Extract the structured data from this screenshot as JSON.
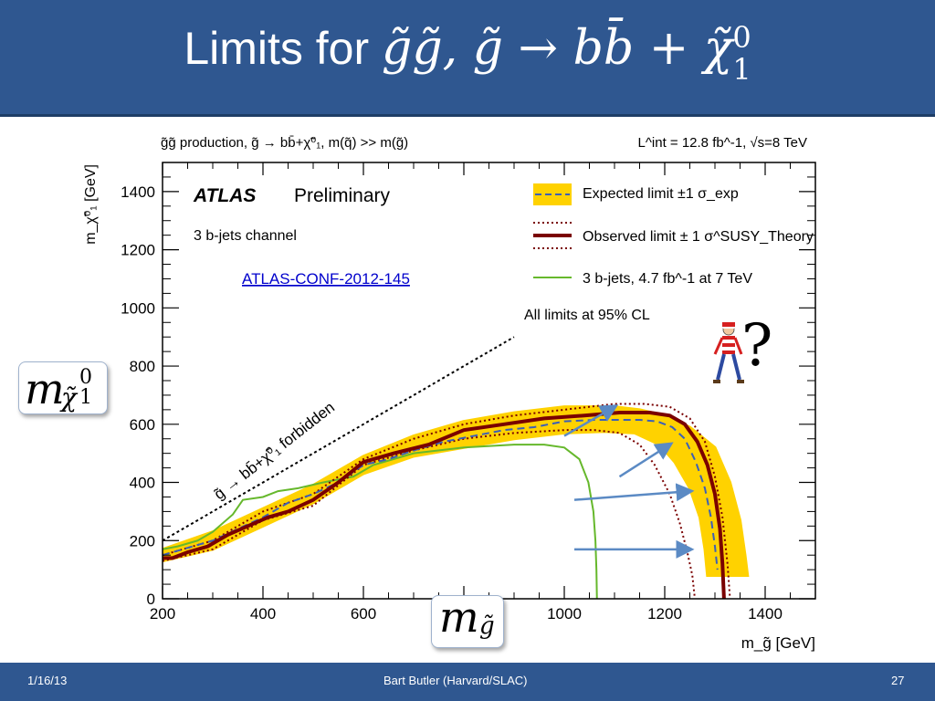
{
  "slide": {
    "title_text": "Limits for",
    "title_math": "g̃g̃, g̃ → bb̄ + χ̃",
    "title_math_sup": "0",
    "title_math_sub": "1",
    "footer_date": "1/16/13",
    "footer_author": "Bart Butler (Harvard/SLAC)",
    "footer_page": "27",
    "y_callout_main": "m",
    "y_callout_sub": "χ̃",
    "y_callout_sub_sup": "0",
    "y_callout_sub_sub": "1",
    "x_callout_main": "m",
    "x_callout_sub": "g̃",
    "question_mark": "?"
  },
  "chart_data": {
    "type": "line",
    "header_left": "g̃g̃  production, g̃ → bb̄+χ̃⁰₁, m(q̃) >> m(g̃)",
    "header_right": "L^int = 12.8 fb^-1, √s=8 TeV",
    "xlabel": "m_g̃ [GeV]",
    "ylabel": "m_χ̃⁰₁ [GeV]",
    "xlim": [
      200,
      1500
    ],
    "ylim": [
      0,
      1500
    ],
    "xticks": [
      200,
      400,
      600,
      800,
      1000,
      1200,
      1400
    ],
    "yticks": [
      0,
      200,
      400,
      600,
      800,
      1000,
      1200,
      1400
    ],
    "atlas": "ATLAS",
    "preliminary": "Preliminary",
    "channel": "3 b-jets channel",
    "conf_link": "ATLAS-CONF-2012-145",
    "cl_note": "All limits at 95% CL",
    "forbidden_label": "g̃ → bb̄+χ̃⁰₁  forbidden",
    "legend": [
      {
        "key": "expected",
        "text": "Expected limit ±1 σ_exp"
      },
      {
        "key": "observed",
        "text": "Observed limit ± 1 σ^SUSY_Theory"
      },
      {
        "key": "old",
        "text": "3 b-jets, 4.7 fb^-1 at 7 TeV"
      }
    ],
    "colors": {
      "observed": "#7a0000",
      "expected": "#3b5fb8",
      "band": "#ffd200",
      "old": "#66b82c",
      "arrow": "#5b8ac4",
      "forbidden": "#000000"
    },
    "series": {
      "forbidden": {
        "x": [
          200,
          900
        ],
        "y": [
          200,
          900
        ]
      },
      "observed": {
        "x": [
          200,
          220,
          250,
          290,
          330,
          370,
          410,
          450,
          500,
          550,
          600,
          660,
          730,
          800,
          880,
          960,
          1040,
          1110,
          1170,
          1210,
          1240,
          1265,
          1285,
          1300,
          1310,
          1315,
          1318
        ],
        "y": [
          140,
          140,
          160,
          180,
          220,
          250,
          280,
          300,
          340,
          400,
          470,
          500,
          530,
          580,
          600,
          620,
          630,
          640,
          640,
          630,
          600,
          540,
          460,
          360,
          240,
          120,
          0
        ]
      },
      "observed_upper": {
        "x": [
          200,
          300,
          400,
          500,
          600,
          700,
          800,
          900,
          1000,
          1100,
          1160,
          1210,
          1250,
          1280,
          1300,
          1315,
          1325,
          1330
        ],
        "y": [
          150,
          200,
          300,
          360,
          480,
          550,
          600,
          630,
          650,
          670,
          670,
          660,
          620,
          540,
          420,
          280,
          120,
          0
        ]
      },
      "observed_lower": {
        "x": [
          200,
          300,
          400,
          500,
          600,
          700,
          800,
          900,
          1000,
          1060,
          1110,
          1150,
          1180,
          1210,
          1230,
          1245,
          1255,
          1260
        ],
        "y": [
          130,
          170,
          270,
          320,
          460,
          510,
          550,
          570,
          580,
          580,
          570,
          530,
          460,
          360,
          260,
          160,
          80,
          0
        ]
      },
      "expected": {
        "x": [
          200,
          300,
          400,
          450,
          500,
          550,
          600,
          650,
          700,
          760,
          820,
          880,
          940,
          1000,
          1060,
          1110,
          1150,
          1185,
          1215,
          1240,
          1262,
          1280,
          1292,
          1300,
          1305
        ],
        "y": [
          150,
          200,
          280,
          330,
          360,
          400,
          460,
          480,
          510,
          540,
          560,
          580,
          590,
          610,
          615,
          615,
          615,
          610,
          590,
          550,
          470,
          380,
          280,
          180,
          100
        ]
      },
      "band_upper": {
        "x": [
          200,
          300,
          400,
          500,
          600,
          700,
          800,
          900,
          1000,
          1100,
          1150,
          1200,
          1250,
          1300,
          1330,
          1350,
          1360,
          1365
        ],
        "y": [
          170,
          230,
          310,
          390,
          490,
          560,
          610,
          640,
          660,
          660,
          650,
          630,
          590,
          520,
          400,
          270,
          150,
          80
        ]
      },
      "band_lower": {
        "x": [
          200,
          300,
          400,
          500,
          600,
          700,
          800,
          900,
          1000,
          1080,
          1140,
          1190,
          1220,
          1250,
          1270,
          1280,
          1285
        ],
        "y": [
          130,
          170,
          250,
          330,
          430,
          490,
          520,
          550,
          570,
          575,
          570,
          530,
          470,
          380,
          280,
          170,
          80
        ]
      },
      "old_7tev": {
        "x": [
          200,
          230,
          270,
          300,
          340,
          360,
          400,
          430,
          470,
          520,
          580,
          620,
          700,
          800,
          900,
          960,
          1000,
          1030,
          1048,
          1058,
          1062,
          1064,
          1065
        ],
        "y": [
          170,
          180,
          200,
          230,
          290,
          340,
          350,
          370,
          380,
          400,
          420,
          460,
          500,
          520,
          530,
          530,
          520,
          480,
          400,
          300,
          200,
          100,
          0
        ]
      }
    },
    "arrows": [
      {
        "from": [
          1000,
          560
        ],
        "to": [
          1100,
          660
        ]
      },
      {
        "from": [
          1110,
          420
        ],
        "to": [
          1210,
          530
        ]
      },
      {
        "from": [
          1020,
          340
        ],
        "to": [
          1250,
          370
        ]
      },
      {
        "from": [
          1020,
          170
        ],
        "to": [
          1250,
          170
        ]
      }
    ]
  }
}
